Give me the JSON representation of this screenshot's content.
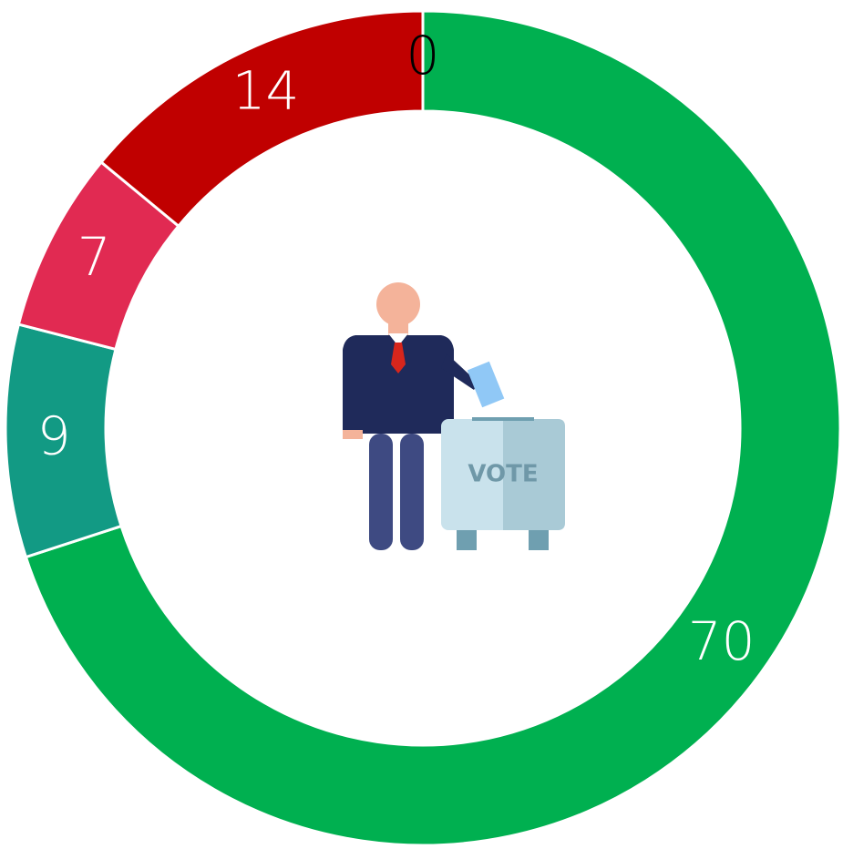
{
  "chart_data": {
    "type": "donut",
    "values": [
      70,
      9,
      7,
      14,
      0
    ],
    "colors": [
      "#00b050",
      "#129a84",
      "#e12a52",
      "#c00000",
      "#c00000"
    ],
    "label_colors": [
      "#ffffff",
      "#ffffff",
      "#ffffff",
      "#ffffff",
      "#000000"
    ],
    "center_label": "VOTE"
  }
}
